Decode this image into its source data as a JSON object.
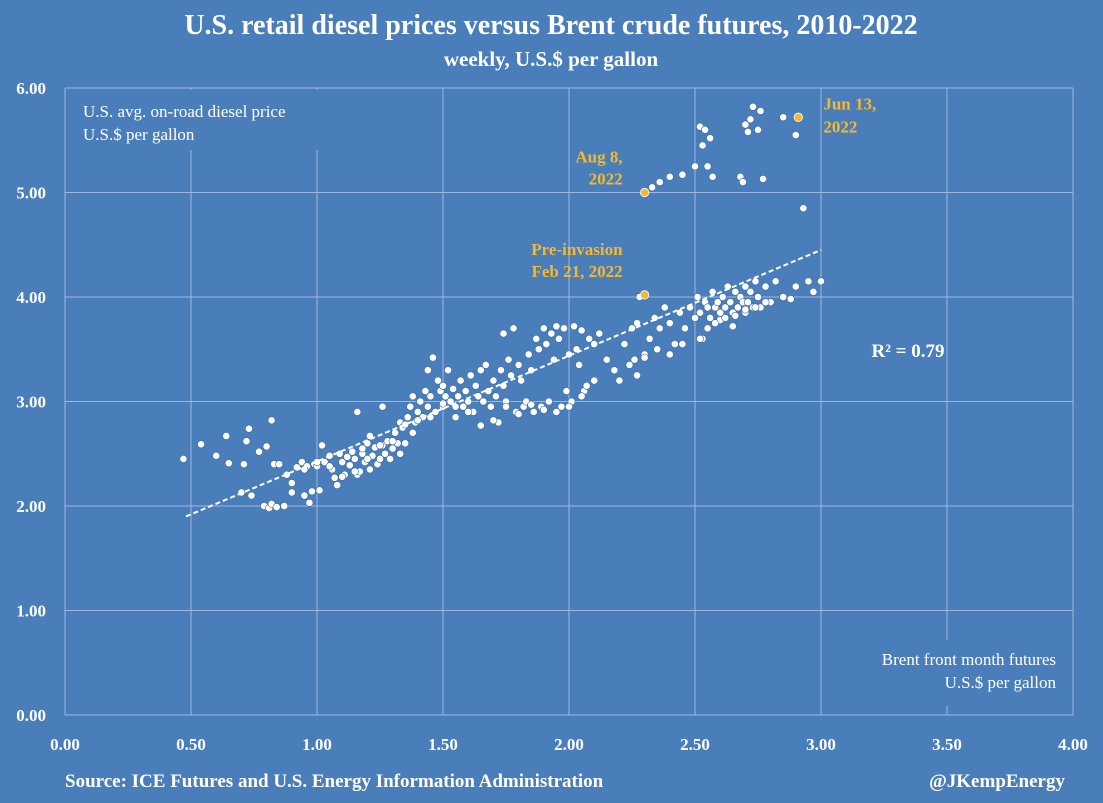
{
  "chart_data": {
    "type": "scatter",
    "title": "U.S. retail diesel prices versus Brent crude futures, 2010-2022",
    "subtitle": "weekly, U.S.$ per gallon",
    "ylabel": [
      "U.S.  avg. on-road diesel price",
      "U.S.$ per gallon"
    ],
    "xlabel": [
      "Brent front month futures",
      "U.S.$ per gallon"
    ],
    "xlim": [
      0,
      4
    ],
    "ylim": [
      0,
      6
    ],
    "x_ticks": [
      "0.00",
      "0.50",
      "1.00",
      "1.50",
      "2.00",
      "2.50",
      "3.00",
      "3.50",
      "4.00"
    ],
    "y_ticks": [
      "0.00",
      "1.00",
      "2.00",
      "3.00",
      "4.00",
      "5.00",
      "6.00"
    ],
    "grid": true,
    "r_squared": "R² = 0.79",
    "trendline": {
      "x": [
        0.48,
        3.0
      ],
      "y": [
        1.9,
        4.45
      ]
    },
    "colors": {
      "background": "#4a7ebb",
      "points": "#ffffff",
      "highlight": "#f5b82e",
      "grid": "#9db8dc"
    },
    "series": [
      {
        "values": [
          [
            0.47,
            2.45
          ],
          [
            0.54,
            2.59
          ],
          [
            0.6,
            2.48
          ],
          [
            0.64,
            2.67
          ],
          [
            0.65,
            2.41
          ],
          [
            0.7,
            2.13
          ],
          [
            0.71,
            2.4
          ],
          [
            0.72,
            2.62
          ],
          [
            0.73,
            2.74
          ],
          [
            0.74,
            2.1
          ],
          [
            0.77,
            2.52
          ],
          [
            0.79,
            2.0
          ],
          [
            0.8,
            2.57
          ],
          [
            0.81,
            1.98
          ],
          [
            0.82,
            2.02
          ],
          [
            0.82,
            2.82
          ],
          [
            0.84,
            1.99
          ],
          [
            0.83,
            2.4
          ],
          [
            0.85,
            2.4
          ],
          [
            0.87,
            2.0
          ],
          [
            0.88,
            2.3
          ],
          [
            0.9,
            2.22
          ],
          [
            0.9,
            2.13
          ],
          [
            0.92,
            2.37
          ],
          [
            0.94,
            2.42
          ],
          [
            0.95,
            2.1
          ],
          [
            0.96,
            2.38
          ],
          [
            0.97,
            2.03
          ],
          [
            0.98,
            2.14
          ],
          [
            0.99,
            2.4
          ],
          [
            1.0,
            2.38
          ],
          [
            1.01,
            2.15
          ],
          [
            1.02,
            2.58
          ],
          [
            1.03,
            2.42
          ],
          [
            1.05,
            2.48
          ],
          [
            1.06,
            2.35
          ],
          [
            1.07,
            2.27
          ],
          [
            1.08,
            2.2
          ],
          [
            1.09,
            2.5
          ],
          [
            1.1,
            2.42
          ],
          [
            1.11,
            2.3
          ],
          [
            1.12,
            2.47
          ],
          [
            1.13,
            2.39
          ],
          [
            1.14,
            2.52
          ],
          [
            1.15,
            2.45
          ],
          [
            1.16,
            2.3
          ],
          [
            1.16,
            2.9
          ],
          [
            1.17,
            2.33
          ],
          [
            1.18,
            2.5
          ],
          [
            1.18,
            2.55
          ],
          [
            1.19,
            2.42
          ],
          [
            1.2,
            2.6
          ],
          [
            1.21,
            2.35
          ],
          [
            1.21,
            2.67
          ],
          [
            1.22,
            2.48
          ],
          [
            1.23,
            2.56
          ],
          [
            1.24,
            2.4
          ],
          [
            1.25,
            2.45
          ],
          [
            1.26,
            2.58
          ],
          [
            1.26,
            2.95
          ],
          [
            1.27,
            2.5
          ],
          [
            1.28,
            2.62
          ],
          [
            1.29,
            2.45
          ],
          [
            1.3,
            2.55
          ],
          [
            1.31,
            2.7
          ],
          [
            1.32,
            2.6
          ],
          [
            1.33,
            2.5
          ],
          [
            1.33,
            2.8
          ],
          [
            1.34,
            2.75
          ],
          [
            1.35,
            2.6
          ],
          [
            1.36,
            2.85
          ],
          [
            1.37,
            2.95
          ],
          [
            1.38,
            2.7
          ],
          [
            1.38,
            3.05
          ],
          [
            1.39,
            2.8
          ],
          [
            1.4,
            2.9
          ],
          [
            1.41,
            3.0
          ],
          [
            1.42,
            2.85
          ],
          [
            1.43,
            3.1
          ],
          [
            1.44,
            2.95
          ],
          [
            1.44,
            3.3
          ],
          [
            1.45,
            3.05
          ],
          [
            1.46,
            3.42
          ],
          [
            1.47,
            2.9
          ],
          [
            1.48,
            3.2
          ],
          [
            1.49,
            3.1
          ],
          [
            1.5,
            2.95
          ],
          [
            1.5,
            3.15
          ],
          [
            1.51,
            3.05
          ],
          [
            1.52,
            3.3
          ],
          [
            1.53,
            3.0
          ],
          [
            1.54,
            3.12
          ],
          [
            1.55,
            2.85
          ],
          [
            1.56,
            3.05
          ],
          [
            1.57,
            3.2
          ],
          [
            1.58,
            2.95
          ],
          [
            1.59,
            3.1
          ],
          [
            1.6,
            3.0
          ],
          [
            1.61,
            3.25
          ],
          [
            1.62,
            2.9
          ],
          [
            1.63,
            3.15
          ],
          [
            1.64,
            3.05
          ],
          [
            1.65,
            3.3
          ],
          [
            1.66,
            3.0
          ],
          [
            1.67,
            3.35
          ],
          [
            1.68,
            3.1
          ],
          [
            1.69,
            2.95
          ],
          [
            1.7,
            3.2
          ],
          [
            1.71,
            3.05
          ],
          [
            1.72,
            2.8
          ],
          [
            1.73,
            3.3
          ],
          [
            1.74,
            3.15
          ],
          [
            1.74,
            3.65
          ],
          [
            1.75,
            3.0
          ],
          [
            1.76,
            3.4
          ],
          [
            1.77,
            3.25
          ],
          [
            1.78,
            3.7
          ],
          [
            1.79,
            2.9
          ],
          [
            1.8,
            3.35
          ],
          [
            1.81,
            3.2
          ],
          [
            1.82,
            2.95
          ],
          [
            1.83,
            3.0
          ],
          [
            1.84,
            3.45
          ],
          [
            1.85,
            3.3
          ],
          [
            1.86,
            2.9
          ],
          [
            1.87,
            3.6
          ],
          [
            1.88,
            3.5
          ],
          [
            1.89,
            2.95
          ],
          [
            1.9,
            3.7
          ],
          [
            1.91,
            3.55
          ],
          [
            1.92,
            3.0
          ],
          [
            1.93,
            3.65
          ],
          [
            1.94,
            3.4
          ],
          [
            1.95,
            3.72
          ],
          [
            1.96,
            3.6
          ],
          [
            1.97,
            2.95
          ],
          [
            1.98,
            3.7
          ],
          [
            1.99,
            3.1
          ],
          [
            2.0,
            3.45
          ],
          [
            2.01,
            3.0
          ],
          [
            2.02,
            3.72
          ],
          [
            2.03,
            3.5
          ],
          [
            2.04,
            3.35
          ],
          [
            2.05,
            3.68
          ],
          [
            2.06,
            3.1
          ],
          [
            2.07,
            3.15
          ],
          [
            2.08,
            3.6
          ],
          [
            2.1,
            3.55
          ],
          [
            2.12,
            3.65
          ],
          [
            2.15,
            3.4
          ],
          [
            2.18,
            3.3
          ],
          [
            2.2,
            3.2
          ],
          [
            2.22,
            3.55
          ],
          [
            2.24,
            3.35
          ],
          [
            2.25,
            3.7
          ],
          [
            2.26,
            3.4
          ],
          [
            2.27,
            3.75
          ],
          [
            2.28,
            4.0
          ],
          [
            2.3,
            3.45
          ],
          [
            2.32,
            3.6
          ],
          [
            2.34,
            3.8
          ],
          [
            2.36,
            3.7
          ],
          [
            2.38,
            3.9
          ],
          [
            2.4,
            3.75
          ],
          [
            2.42,
            3.55
          ],
          [
            2.44,
            3.85
          ],
          [
            2.46,
            3.7
          ],
          [
            2.48,
            3.9
          ],
          [
            2.5,
            3.8
          ],
          [
            2.51,
            4.0
          ],
          [
            2.52,
            3.85
          ],
          [
            2.53,
            3.6
          ],
          [
            2.54,
            3.95
          ],
          [
            2.55,
            3.9
          ],
          [
            2.56,
            3.8
          ],
          [
            2.57,
            4.05
          ],
          [
            2.58,
            3.9
          ],
          [
            2.59,
            3.95
          ],
          [
            2.6,
            3.85
          ],
          [
            2.61,
            4.0
          ],
          [
            2.62,
            3.9
          ],
          [
            2.63,
            4.1
          ],
          [
            2.64,
            3.95
          ],
          [
            2.65,
            3.85
          ],
          [
            2.66,
            4.05
          ],
          [
            2.67,
            3.9
          ],
          [
            2.68,
            4.0
          ],
          [
            2.69,
            3.95
          ],
          [
            2.7,
            4.1
          ],
          [
            2.71,
            3.95
          ],
          [
            2.72,
            4.05
          ],
          [
            2.73,
            3.9
          ],
          [
            2.74,
            4.15
          ],
          [
            2.75,
            4.0
          ],
          [
            2.76,
            3.9
          ],
          [
            2.78,
            4.1
          ],
          [
            2.8,
            3.95
          ],
          [
            2.82,
            4.15
          ],
          [
            2.85,
            4.0
          ],
          [
            2.88,
            3.98
          ],
          [
            2.9,
            4.1
          ],
          [
            2.95,
            4.15
          ],
          [
            2.97,
            4.05
          ],
          [
            3.0,
            4.15
          ],
          [
            2.27,
            3.25
          ],
          [
            2.3,
            3.42
          ],
          [
            2.35,
            3.5
          ],
          [
            2.4,
            3.45
          ],
          [
            2.45,
            3.55
          ],
          [
            2.52,
            3.6
          ],
          [
            2.6,
            3.78
          ],
          [
            2.65,
            3.72
          ],
          [
            2.7,
            3.85
          ],
          [
            2.3,
            5.0
          ],
          [
            2.33,
            5.05
          ],
          [
            2.36,
            5.1
          ],
          [
            2.4,
            5.15
          ],
          [
            2.45,
            5.17
          ],
          [
            2.5,
            5.25
          ],
          [
            2.52,
            5.63
          ],
          [
            2.53,
            5.45
          ],
          [
            2.54,
            5.6
          ],
          [
            2.55,
            5.25
          ],
          [
            2.56,
            5.52
          ],
          [
            2.57,
            5.15
          ],
          [
            2.68,
            5.15
          ],
          [
            2.69,
            5.1
          ],
          [
            2.7,
            5.65
          ],
          [
            2.71,
            5.58
          ],
          [
            2.72,
            5.7
          ],
          [
            2.73,
            5.82
          ],
          [
            2.75,
            5.6
          ],
          [
            2.76,
            5.78
          ],
          [
            2.77,
            5.13
          ],
          [
            2.85,
            5.72
          ],
          [
            2.9,
            5.55
          ],
          [
            2.93,
            4.85
          ],
          [
            2.91,
            5.72
          ],
          [
            2.1,
            3.2
          ],
          [
            2.05,
            3.05
          ],
          [
            2.0,
            2.95
          ],
          [
            1.95,
            2.9
          ],
          [
            1.9,
            2.92
          ],
          [
            1.85,
            2.97
          ],
          [
            1.8,
            2.88
          ],
          [
            1.75,
            2.95
          ],
          [
            1.7,
            2.82
          ],
          [
            1.65,
            2.77
          ],
          [
            1.6,
            2.9
          ],
          [
            1.55,
            2.95
          ],
          [
            1.5,
            2.98
          ],
          [
            1.45,
            2.85
          ],
          [
            1.4,
            2.82
          ],
          [
            1.35,
            2.78
          ],
          [
            1.3,
            2.62
          ],
          [
            1.25,
            2.58
          ],
          [
            1.2,
            2.45
          ],
          [
            1.15,
            2.33
          ],
          [
            1.1,
            2.28
          ],
          [
            1.05,
            2.38
          ],
          [
            1.0,
            2.42
          ],
          [
            0.95,
            2.35
          ],
          [
            2.55,
            3.7
          ],
          [
            2.58,
            3.75
          ],
          [
            2.62,
            3.8
          ],
          [
            2.66,
            3.82
          ],
          [
            2.7,
            3.88
          ],
          [
            2.74,
            3.9
          ],
          [
            2.78,
            3.95
          ]
        ]
      }
    ],
    "highlights": [
      {
        "x": 2.3,
        "y": 4.02,
        "label": [
          "Pre-invasion",
          "Feb 21, 2022"
        ]
      },
      {
        "x": 2.3,
        "y": 5.0,
        "label": [
          "Aug 8,",
          "2022"
        ]
      },
      {
        "x": 2.91,
        "y": 5.72,
        "label": [
          "Jun 13,",
          "2022"
        ]
      }
    ]
  },
  "footer": {
    "source": "Source: ICE Futures and U.S. Energy Information Administration",
    "handle": "@JKempEnergy"
  }
}
